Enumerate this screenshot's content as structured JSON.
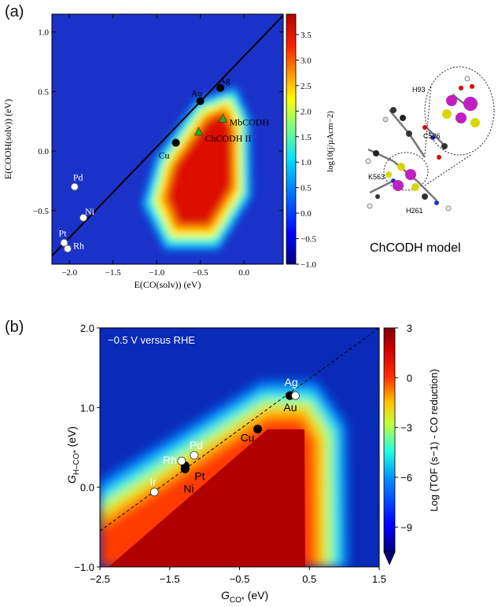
{
  "panel_labels": [
    "(a)",
    "(b)"
  ],
  "chart_data": [
    {
      "type": "heatmap",
      "panel": "(a)",
      "xlabel": "E(CO(solv)) (eV)",
      "ylabel": "E(COOH(solv)) (eV)",
      "xlim": [
        -2.2,
        0.45
      ],
      "ylim": [
        -0.95,
        1.15
      ],
      "x_ticks": [
        "−2.0",
        "−1.5",
        "−1.0",
        "−0.5",
        "0.0"
      ],
      "x_tick_values": [
        -2.0,
        -1.5,
        -1.0,
        -0.5,
        0.0
      ],
      "y_ticks": [
        "−0.5",
        "0.0",
        "0.5",
        "1.0"
      ],
      "y_tick_values": [
        -0.5,
        0.0,
        0.5,
        1.0
      ],
      "colorbar_label": "log10(j/µAcm−2)",
      "colorbar_range": [
        -1.0,
        3.9
      ],
      "colorbar_ticks": [
        "3.5",
        "3.0",
        "2.5",
        "2.0",
        "1.5",
        "1.0",
        "0.5",
        "0.0",
        "−0.5",
        "−1.0"
      ],
      "colorbar_tick_values": [
        3.5,
        3.0,
        2.5,
        2.0,
        1.5,
        1.0,
        0.5,
        0.0,
        -0.5,
        -1.0
      ],
      "scaling_line": {
        "x": [
          -2.2,
          0.45
        ],
        "y": [
          -0.88,
          1.14
        ]
      },
      "points_filled": [
        {
          "label": "Au",
          "x": -0.5,
          "y": 0.42
        },
        {
          "label": "Ag",
          "x": -0.27,
          "y": 0.53
        },
        {
          "label": "Cu",
          "x": -0.78,
          "y": 0.07
        }
      ],
      "points_open": [
        {
          "label": "Pd",
          "x": -1.94,
          "y": -0.3
        },
        {
          "label": "Ni",
          "x": -1.84,
          "y": -0.56
        },
        {
          "label": "Pt",
          "x": -2.06,
          "y": -0.77
        },
        {
          "label": "Rh",
          "x": -2.02,
          "y": -0.82
        }
      ],
      "points_triangle": [
        {
          "label": "MbCODH",
          "x": -0.24,
          "y": 0.27
        },
        {
          "label": "ChCODH II",
          "x": -0.52,
          "y": 0.16
        }
      ],
      "inset_caption": "ChCODH model",
      "inset_labels": [
        "H93",
        "C526",
        "K563",
        "H261"
      ]
    },
    {
      "type": "heatmap",
      "panel": "(b)",
      "annotation": "−0.5 V versus RHE",
      "xlabel": "G",
      "xlabel_sub": "CO*",
      "xlabel_unit": " (eV)",
      "ylabel": "G",
      "ylabel_sub": "H–CO*",
      "ylabel_unit": " (eV)",
      "xlim": [
        -2.5,
        1.5
      ],
      "ylim": [
        -1.0,
        2.0
      ],
      "x_ticks": [
        "−2.5",
        "−1.5",
        "−0.5",
        "0.5",
        "1.5"
      ],
      "x_tick_values": [
        -2.5,
        -1.5,
        -0.5,
        0.5,
        1.5
      ],
      "y_ticks": [
        "−1.0",
        "0.0",
        "1.0",
        "2.0"
      ],
      "y_tick_values": [
        -1.0,
        0.0,
        1.0,
        2.0
      ],
      "colorbar_label": "Log (TOF (s−1) - CO reduction)",
      "colorbar_range": [
        -10.5,
        3
      ],
      "colorbar_ticks": [
        "3",
        "0",
        "−3",
        "−6",
        "−9"
      ],
      "colorbar_tick_values": [
        3,
        0,
        -3,
        -6,
        -9
      ],
      "scaling_line": {
        "x": [
          -2.5,
          1.5
        ],
        "y": [
          -0.55,
          2.0
        ]
      },
      "points_filled": [
        {
          "label": "Au",
          "x": 0.22,
          "y": 1.15
        },
        {
          "label": "Cu",
          "x": -0.24,
          "y": 0.73
        },
        {
          "label": "Pt",
          "x": -1.28,
          "y": 0.27
        },
        {
          "label": "Ni",
          "x": -1.28,
          "y": 0.23
        }
      ],
      "points_open": [
        {
          "label": "Ag",
          "x": 0.3,
          "y": 1.15
        },
        {
          "label": "Pd",
          "x": -1.15,
          "y": 0.4
        },
        {
          "label": "Rh",
          "x": -1.33,
          "y": 0.33
        },
        {
          "label": "Ir",
          "x": -1.72,
          "y": -0.06
        }
      ]
    }
  ]
}
